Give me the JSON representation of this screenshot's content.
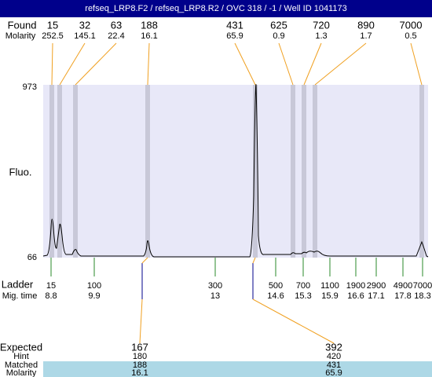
{
  "title": "refseq_LRP8.F2 / refseq_LRP8.R2 / OVC 318 / -1 / Well ID 1041173",
  "found": {
    "label": "Found",
    "values": [
      "15",
      "32",
      "63",
      "188",
      "431",
      "625",
      "720",
      "890",
      "7000"
    ]
  },
  "molarity": {
    "label": "Molarity",
    "values": [
      "252.5",
      "145.1",
      "22.4",
      "16.1",
      "65.9",
      "0.9",
      "1.3",
      "1.7",
      "0.5"
    ]
  },
  "y_axis": {
    "label": "Fluo.",
    "max": "973",
    "min": "66"
  },
  "ladder": {
    "label": "Ladder",
    "values": [
      "15",
      "100",
      "300",
      "500",
      "700",
      "1100",
      "1900",
      "2900",
      "4900",
      "7000"
    ]
  },
  "mig_time": {
    "label": "Mig. time",
    "values": [
      "8.8",
      "9.9",
      "13",
      "14.6",
      "15.3",
      "15.9",
      "16.6",
      "17.1",
      "17.8",
      "18.3"
    ]
  },
  "expected": {
    "labels": [
      "Expected",
      "Hint",
      "Matched",
      "Molarity"
    ],
    "columns": [
      {
        "expected": "167",
        "hint": "180",
        "matched": "188",
        "molarity": "16.1"
      },
      {
        "expected": "392",
        "hint": "420",
        "matched": "431",
        "molarity": "65.9"
      }
    ]
  }
}
